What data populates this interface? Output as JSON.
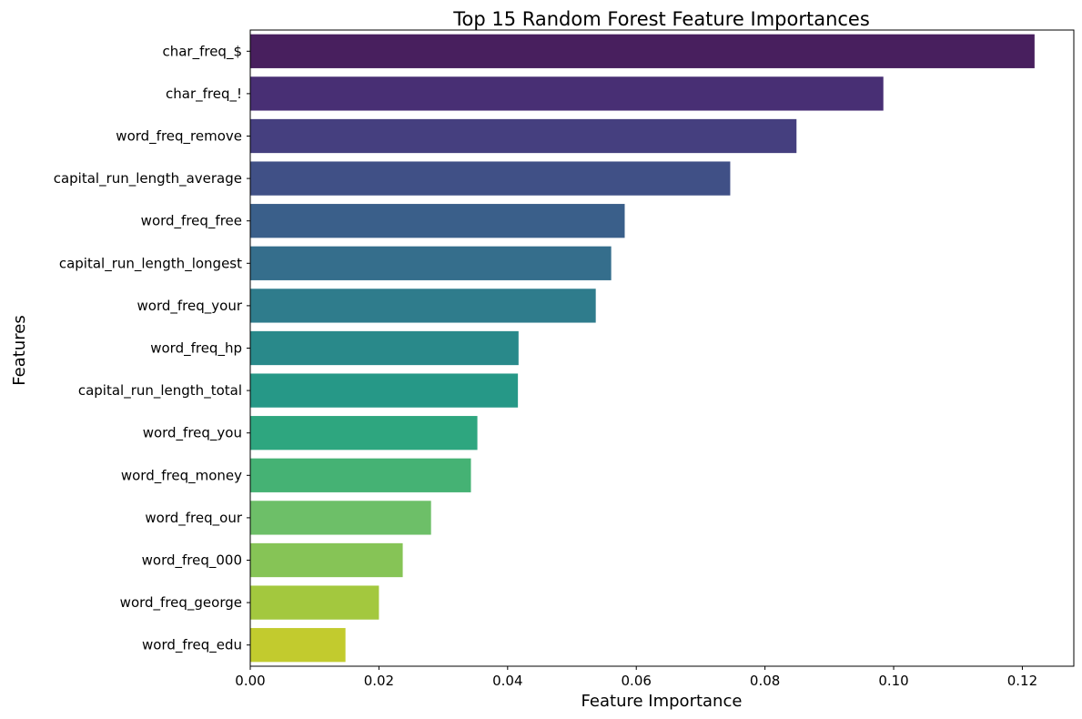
{
  "chart_data": {
    "type": "bar",
    "orientation": "horizontal",
    "title": "Top 15 Random Forest Feature Importances",
    "xlabel": "Feature Importance",
    "ylabel": "Features",
    "xlim": [
      0,
      0.128
    ],
    "xticks": [
      "0.00",
      "0.02",
      "0.04",
      "0.06",
      "0.08",
      "0.10",
      "0.12"
    ],
    "grid": false,
    "palette": "viridis",
    "categories": [
      "char_freq_$",
      "char_freq_!",
      "word_freq_remove",
      "capital_run_length_average",
      "word_freq_free",
      "capital_run_length_longest",
      "word_freq_your",
      "word_freq_hp",
      "capital_run_length_total",
      "word_freq_you",
      "word_freq_money",
      "word_freq_our",
      "word_freq_000",
      "word_freq_george",
      "word_freq_edu"
    ],
    "values": [
      0.1219,
      0.0984,
      0.0849,
      0.0746,
      0.0582,
      0.0561,
      0.0537,
      0.0417,
      0.0416,
      0.0353,
      0.0343,
      0.0281,
      0.0237,
      0.02,
      0.0148
    ],
    "colors": [
      "#481f5e",
      "#482f74",
      "#453f7f",
      "#405086",
      "#3a5f8a",
      "#356e8c",
      "#2f7c8c",
      "#29898a",
      "#269887",
      "#2ea67f",
      "#45b274",
      "#6dbf68",
      "#86c456",
      "#a3c83e",
      "#c2cb2e"
    ]
  }
}
